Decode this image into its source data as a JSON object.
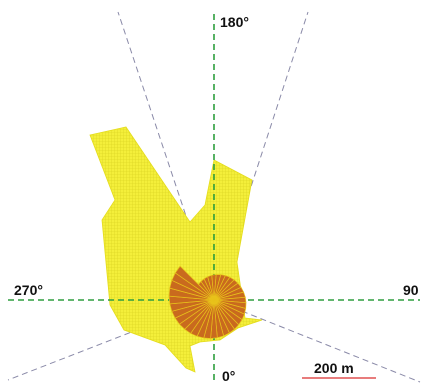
{
  "labels": {
    "north": "180°",
    "east": "90",
    "south": "0°",
    "west": "270°"
  },
  "scale_bar": {
    "label": "200 m",
    "color": "#e05050"
  },
  "colors": {
    "axis": "#2e9e3e",
    "ray": "#8a8aa8",
    "visible_area_fill": "#f4ef3a",
    "visible_area_hatch": "#d6cf1e",
    "spiral_fill": "#c96a1e",
    "spiral_hatch": "#e8c21a"
  }
}
